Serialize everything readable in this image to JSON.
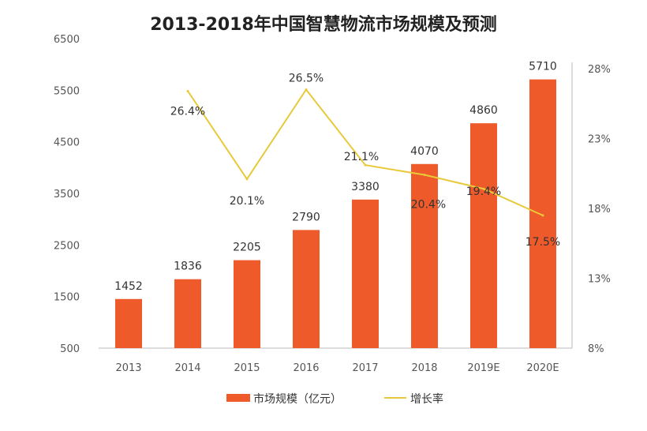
{
  "chart_data": {
    "type": "bar+line",
    "title": "2013-2018年中国智慧物流市场规模及预测",
    "categories": [
      "2013",
      "2014",
      "2015",
      "2016",
      "2017",
      "2018",
      "2019E",
      "2020E"
    ],
    "series": [
      {
        "name": "市场规模（亿元）",
        "type": "bar",
        "axis": "left",
        "color": "#ee5a2a",
        "values": [
          1452,
          1836,
          2205,
          2790,
          3380,
          4070,
          4860,
          5710
        ],
        "labels": [
          "1452",
          "1836",
          "2205",
          "2790",
          "3380",
          "4070",
          "4860",
          "5710"
        ]
      },
      {
        "name": "增长率",
        "type": "line",
        "axis": "right",
        "color": "#e8c93a",
        "values": [
          null,
          26.4,
          20.1,
          26.5,
          21.1,
          20.4,
          19.4,
          17.5
        ],
        "labels": [
          null,
          "26.4%",
          "20.1%",
          "26.5%",
          "21.1%",
          "20.4%",
          "19.4%",
          "17.5%"
        ]
      }
    ],
    "y_left": {
      "range": [
        500,
        6500
      ],
      "ticks": [
        "500",
        "1500",
        "2500",
        "3500",
        "4500",
        "5500",
        "6500"
      ]
    },
    "y_right": {
      "range": [
        8,
        28
      ],
      "ticks": [
        "8%",
        "13%",
        "18%",
        "23%",
        "28%"
      ]
    },
    "grid": false,
    "legend": "bottom"
  }
}
